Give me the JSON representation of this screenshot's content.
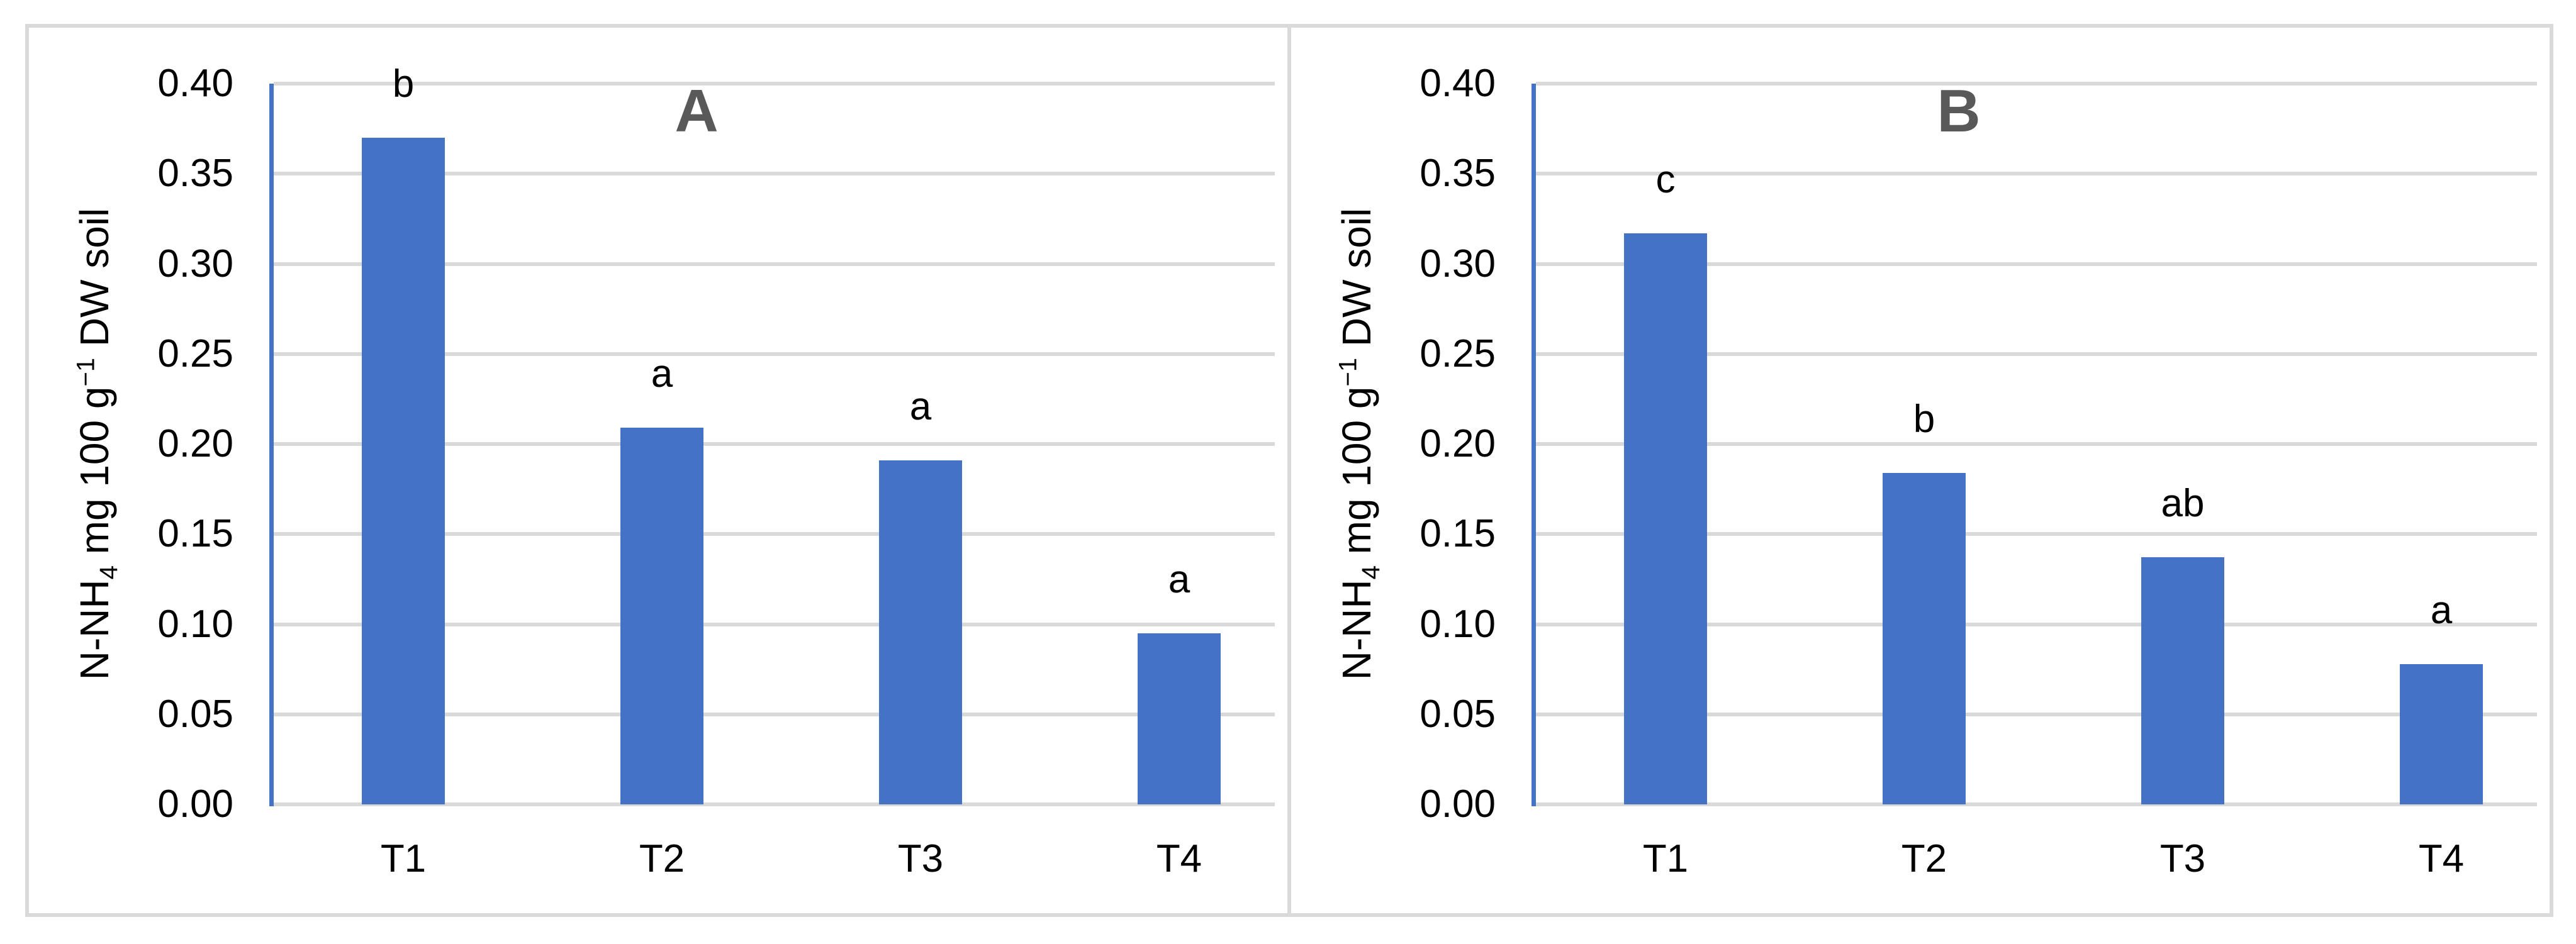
{
  "figure": {
    "background": "#FFFFFF",
    "panel_border_color": "#D9D9D9",
    "gridline_color": "#D9D9D9",
    "bar_color": "#4472C4",
    "axis_line_color": "#4472C4",
    "panel_label_color": "#595959",
    "text_color": "#000000"
  },
  "chart_data": [
    {
      "type": "bar",
      "panel_label": "A",
      "categories": [
        "T1",
        "T2",
        "T3",
        "T4"
      ],
      "values": [
        0.37,
        0.209,
        0.191,
        0.095
      ],
      "significance_letters": [
        "b",
        "a",
        "a",
        "a"
      ],
      "ylabel": "N-NH₄ mg 100 g⁻¹ DW soil",
      "ylabel_parts": [
        {
          "t": "N-NH",
          "style": "normal"
        },
        {
          "t": "4",
          "style": "sub"
        },
        {
          "t": " mg 100 g",
          "style": "normal"
        },
        {
          "t": "−1",
          "style": "sup"
        },
        {
          "t": " DW soil",
          "style": "normal"
        }
      ],
      "xlabel": "",
      "ylim": [
        0,
        0.4
      ],
      "ytick_step": 0.05,
      "yticks": [
        "0.00",
        "0.05",
        "0.10",
        "0.15",
        "0.20",
        "0.25",
        "0.30",
        "0.35",
        "0.40"
      ],
      "grid": true,
      "legend": null
    },
    {
      "type": "bar",
      "panel_label": "B",
      "categories": [
        "T1",
        "T2",
        "T3",
        "T4"
      ],
      "values": [
        0.317,
        0.184,
        0.137,
        0.078
      ],
      "significance_letters": [
        "c",
        "b",
        "ab",
        "a"
      ],
      "ylabel": "N-NH₄ mg 100 g⁻¹ DW soil",
      "ylabel_parts": [
        {
          "t": "N-NH",
          "style": "normal"
        },
        {
          "t": "4",
          "style": "sub"
        },
        {
          "t": " mg 100 g",
          "style": "normal"
        },
        {
          "t": "−1",
          "style": "sup"
        },
        {
          "t": " DW soil",
          "style": "normal"
        }
      ],
      "xlabel": "",
      "ylim": [
        0,
        0.4
      ],
      "ytick_step": 0.05,
      "yticks": [
        "0.00",
        "0.05",
        "0.10",
        "0.15",
        "0.20",
        "0.25",
        "0.30",
        "0.35",
        "0.40"
      ],
      "grid": true,
      "legend": null
    }
  ]
}
